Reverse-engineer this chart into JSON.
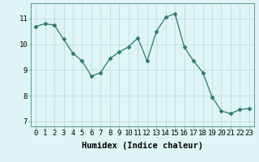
{
  "x": [
    0,
    1,
    2,
    3,
    4,
    5,
    6,
    7,
    8,
    9,
    10,
    11,
    12,
    13,
    14,
    15,
    16,
    17,
    18,
    19,
    20,
    21,
    22,
    23
  ],
  "y": [
    10.7,
    10.8,
    10.75,
    10.2,
    9.65,
    9.35,
    8.75,
    8.9,
    9.45,
    9.7,
    9.9,
    10.25,
    9.35,
    10.5,
    11.05,
    11.2,
    9.9,
    9.35,
    8.9,
    7.95,
    7.4,
    7.3,
    7.45,
    7.5
  ],
  "line_color": "#2a7a6a",
  "marker": "D",
  "marker_size": 2.5,
  "bg_color": "#dff5f5",
  "grid_color": "#b8dada",
  "xlabel": "Humidex (Indice chaleur)",
  "xlim": [
    -0.5,
    23.5
  ],
  "ylim": [
    6.8,
    11.6
  ],
  "yticks": [
    7,
    8,
    9,
    10,
    11
  ],
  "xticks": [
    0,
    1,
    2,
    3,
    4,
    5,
    6,
    7,
    8,
    9,
    10,
    11,
    12,
    13,
    14,
    15,
    16,
    17,
    18,
    19,
    20,
    21,
    22,
    23
  ],
  "tick_fontsize": 6.5,
  "xlabel_fontsize": 7.5
}
